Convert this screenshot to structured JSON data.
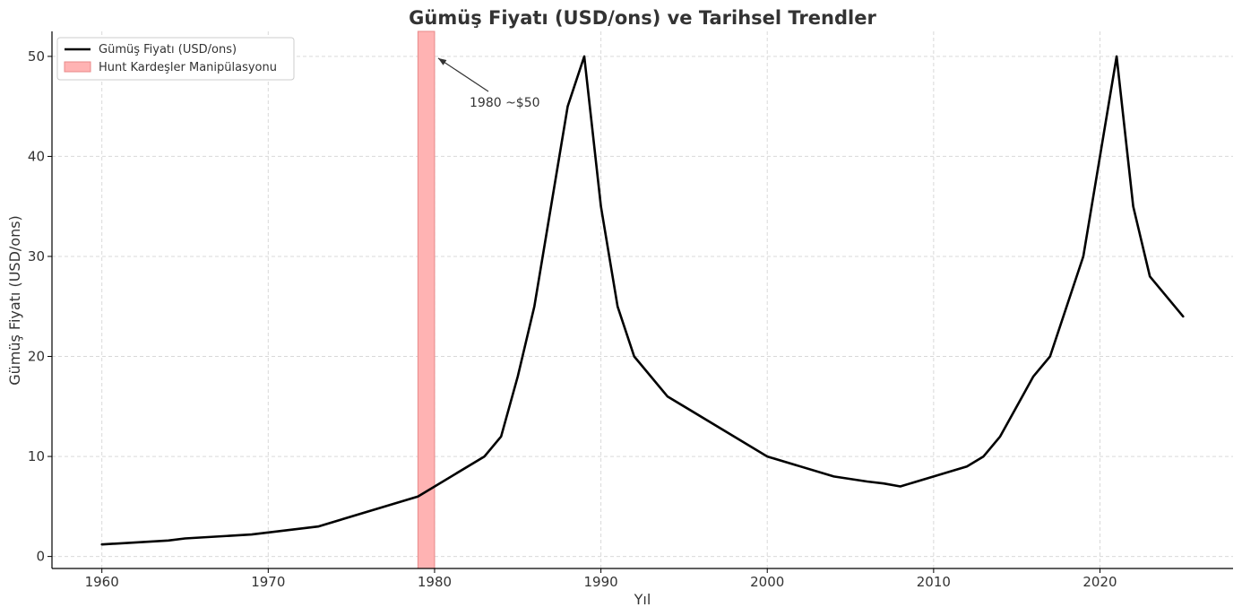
{
  "chart_data": {
    "type": "line",
    "title": "Gümüş Fiyatı (USD/ons) ve Tarihsel Trendler",
    "xlabel": "Yıl",
    "ylabel": "Gümüş Fiyatı (USD/ons)",
    "xlim": [
      1957,
      2028
    ],
    "ylim": [
      -1.2,
      52.5
    ],
    "xticks": [
      1960,
      1970,
      1980,
      1990,
      2000,
      2010,
      2020
    ],
    "yticks": [
      0,
      10,
      20,
      30,
      40,
      50
    ],
    "grid": true,
    "legend_position": "top-left",
    "series": [
      {
        "name": "Gümüş Fiyatı (USD/ons)",
        "color": "#000000",
        "x": [
          1960,
          1964,
          1965,
          1969,
          1973,
          1979,
          1983,
          1984,
          1985,
          1986,
          1988,
          1989,
          1990,
          1991,
          1992,
          1994,
          2000,
          2004,
          2006,
          2007,
          2008,
          2012,
          2013,
          2014,
          2016,
          2017,
          2019,
          2021,
          2022,
          2023,
          2025
        ],
        "y": [
          1.2,
          1.6,
          1.8,
          2.2,
          3.0,
          6.0,
          10.0,
          12.0,
          18.0,
          25.0,
          45.0,
          50.0,
          35.0,
          25.0,
          20.0,
          16.0,
          10.0,
          8.0,
          7.5,
          7.3,
          7.0,
          9.0,
          10.0,
          12.0,
          18.0,
          20.0,
          30.0,
          50.0,
          35.0,
          28.0,
          24.0
        ]
      }
    ],
    "shaded_region": {
      "label": "Hunt Kardeşler Manipülasyonu",
      "x_start": 1979,
      "x_end": 1980,
      "color": "#ffb3b3",
      "edge_color": "#e88a8a"
    },
    "annotations": [
      {
        "text": "1980 ~$50",
        "point_x": 1980,
        "point_y": 50
      }
    ]
  }
}
